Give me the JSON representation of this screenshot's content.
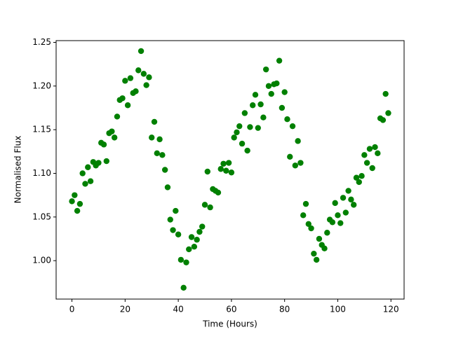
{
  "chart_data": {
    "type": "scatter",
    "x_label": "Time (Hours)",
    "y_label": "Normalised Flux",
    "series": [
      {
        "color": "#008000",
        "x": [
          0,
          1,
          2,
          3,
          4,
          5,
          6,
          7,
          8,
          9,
          10,
          11,
          12,
          13,
          14,
          15,
          16,
          17,
          18,
          19,
          20,
          21,
          22,
          23,
          24,
          25,
          26,
          27,
          28,
          29,
          30,
          31,
          32,
          33,
          34,
          35,
          36,
          37,
          38,
          39,
          40,
          41,
          42,
          43,
          44,
          45,
          46,
          47,
          48,
          49,
          50,
          51,
          52,
          53,
          54,
          55,
          56,
          57,
          58,
          59,
          60,
          61,
          62,
          63,
          64,
          65,
          66,
          67,
          68,
          69,
          70,
          71,
          72,
          73,
          74,
          75,
          76,
          77,
          78,
          79,
          80,
          81,
          82,
          83,
          84,
          85,
          86,
          87,
          88,
          89,
          90,
          91,
          92,
          93,
          94,
          95,
          96,
          97,
          98,
          99,
          100,
          101,
          102,
          103,
          104,
          105,
          106,
          107,
          108,
          109,
          110,
          111,
          112,
          113,
          114,
          115,
          116,
          117,
          118,
          119
        ],
        "values": [
          1.068,
          1.075,
          1.057,
          1.065,
          1.1,
          1.088,
          1.107,
          1.091,
          1.113,
          1.109,
          1.112,
          1.135,
          1.133,
          1.114,
          1.146,
          1.148,
          1.141,
          1.165,
          1.184,
          1.186,
          1.206,
          1.178,
          1.209,
          1.192,
          1.194,
          1.218,
          1.24,
          1.214,
          1.201,
          1.21,
          1.141,
          1.159,
          1.123,
          1.139,
          1.121,
          1.104,
          1.084,
          1.047,
          1.035,
          1.057,
          1.03,
          1.001,
          0.969,
          0.998,
          1.013,
          1.027,
          1.016,
          1.024,
          1.033,
          1.039,
          1.064,
          1.102,
          1.061,
          1.082,
          1.08,
          1.078,
          1.105,
          1.111,
          1.103,
          1.112,
          1.101,
          1.141,
          1.147,
          1.154,
          1.134,
          1.169,
          1.126,
          1.153,
          1.178,
          1.19,
          1.152,
          1.179,
          1.164,
          1.219,
          1.2,
          1.191,
          1.202,
          1.203,
          1.229,
          1.175,
          1.193,
          1.162,
          1.119,
          1.154,
          1.109,
          1.137,
          1.112,
          1.052,
          1.065,
          1.042,
          1.037,
          1.008,
          1.001,
          1.025,
          1.018,
          1.014,
          1.032,
          1.047,
          1.044,
          1.066,
          1.052,
          1.043,
          1.072,
          1.055,
          1.08,
          1.07,
          1.064,
          1.095,
          1.09,
          1.097,
          1.121,
          1.112,
          1.128,
          1.106,
          1.13,
          1.123,
          1.163,
          1.161,
          1.191,
          1.169
        ]
      }
    ],
    "xlim": [
      -5.95,
      124.95
    ],
    "xticks": [
      0,
      20,
      40,
      60,
      80,
      100,
      120
    ],
    "ylim": [
      0.956,
      1.252
    ],
    "yticks": [
      {
        "value": 1.0,
        "label": "1.00"
      },
      1.05,
      {
        "value": 1.1,
        "label": "1.10"
      },
      1.15,
      {
        "value": 1.2,
        "label": "1.20"
      },
      1.25
    ]
  }
}
